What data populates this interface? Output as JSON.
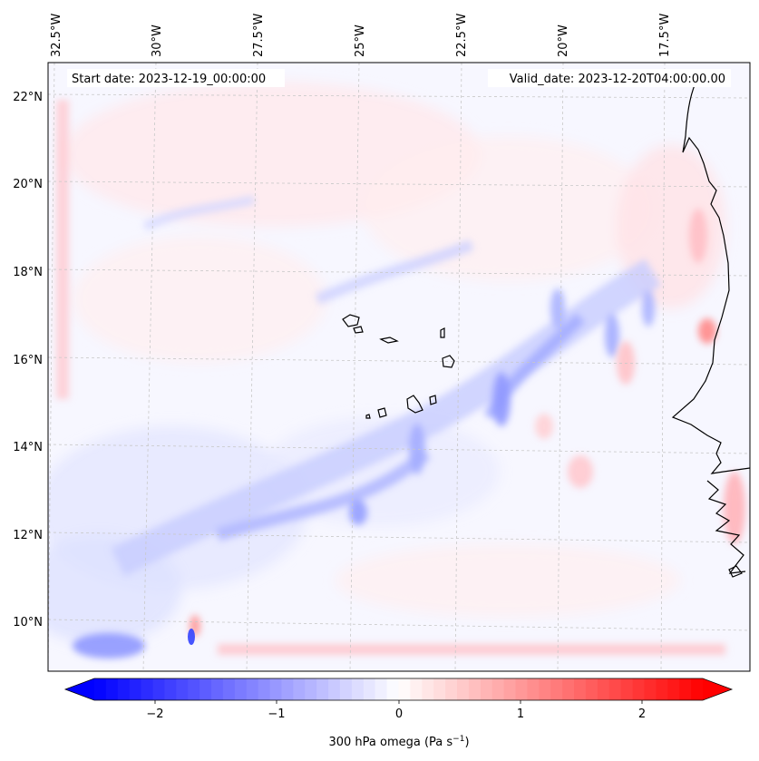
{
  "map": {
    "top_longitude_labels": [
      "32.5°W",
      "30°W",
      "27.5°W",
      "25°W",
      "22.5°W",
      "20°W",
      "17.5°W"
    ],
    "latitude_labels": [
      "22°N",
      "20°N",
      "18°N",
      "16°N",
      "14°N",
      "12°N",
      "10°N"
    ],
    "start_date_text": "Start date: 2023-12-19_00:00:00",
    "valid_date_text": "Valid_date: 2023-12-20T04:00:00.00",
    "field": "300 hPa omega",
    "colors": {
      "negative": "#0000ff",
      "zero": "#ffffff",
      "positive": "#ff0000",
      "coastline": "#000000",
      "gridline": "#c8c8c8"
    }
  },
  "colorbar": {
    "ticks": [
      "−2",
      "−1",
      "0",
      "1",
      "2"
    ],
    "label_main": "300 hPa omega (Pa s",
    "label_exp": "−1",
    "label_end": ")",
    "range": [
      -2.6,
      2.6
    ],
    "levels": 52,
    "extend": "both"
  }
}
